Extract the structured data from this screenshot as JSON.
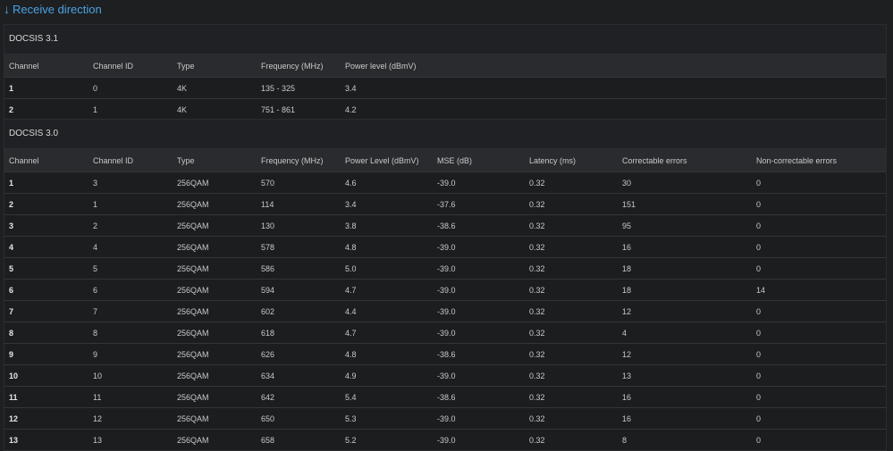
{
  "heading": {
    "arrow": "↓",
    "title": "Receive direction"
  },
  "docsis31": {
    "title": "DOCSIS 3.1",
    "columns": [
      "Channel",
      "Channel ID",
      "Type",
      "Frequency (MHz)",
      "Power level (dBmV)"
    ],
    "rows": [
      [
        "1",
        "0",
        "4K",
        "135 - 325",
        "3.4"
      ],
      [
        "2",
        "1",
        "4K",
        "751 - 861",
        "4.2"
      ]
    ]
  },
  "docsis30": {
    "title": "DOCSIS 3.0",
    "columns": [
      "Channel",
      "Channel ID",
      "Type",
      "Frequency (MHz)",
      "Power Level (dBmV)",
      "MSE (dB)",
      "Latency (ms)",
      "Correctable errors",
      "Non-correctable errors"
    ],
    "rows": [
      [
        "1",
        "3",
        "256QAM",
        "570",
        "4.6",
        "-39.0",
        "0.32",
        "30",
        "0"
      ],
      [
        "2",
        "1",
        "256QAM",
        "114",
        "3.4",
        "-37.6",
        "0.32",
        "151",
        "0"
      ],
      [
        "3",
        "2",
        "256QAM",
        "130",
        "3.8",
        "-38.6",
        "0.32",
        "95",
        "0"
      ],
      [
        "4",
        "4",
        "256QAM",
        "578",
        "4.8",
        "-39.0",
        "0.32",
        "16",
        "0"
      ],
      [
        "5",
        "5",
        "256QAM",
        "586",
        "5.0",
        "-39.0",
        "0.32",
        "18",
        "0"
      ],
      [
        "6",
        "6",
        "256QAM",
        "594",
        "4.7",
        "-39.0",
        "0.32",
        "18",
        "14"
      ],
      [
        "7",
        "7",
        "256QAM",
        "602",
        "4.4",
        "-39.0",
        "0.32",
        "12",
        "0"
      ],
      [
        "8",
        "8",
        "256QAM",
        "618",
        "4.7",
        "-39.0",
        "0.32",
        "4",
        "0"
      ],
      [
        "9",
        "9",
        "256QAM",
        "626",
        "4.8",
        "-38.6",
        "0.32",
        "12",
        "0"
      ],
      [
        "10",
        "10",
        "256QAM",
        "634",
        "4.9",
        "-39.0",
        "0.32",
        "13",
        "0"
      ],
      [
        "11",
        "11",
        "256QAM",
        "642",
        "5.4",
        "-38.6",
        "0.32",
        "16",
        "0"
      ],
      [
        "12",
        "12",
        "256QAM",
        "650",
        "5.3",
        "-39.0",
        "0.32",
        "16",
        "0"
      ],
      [
        "13",
        "13",
        "256QAM",
        "658",
        "5.2",
        "-39.0",
        "0.32",
        "8",
        "0"
      ]
    ]
  }
}
